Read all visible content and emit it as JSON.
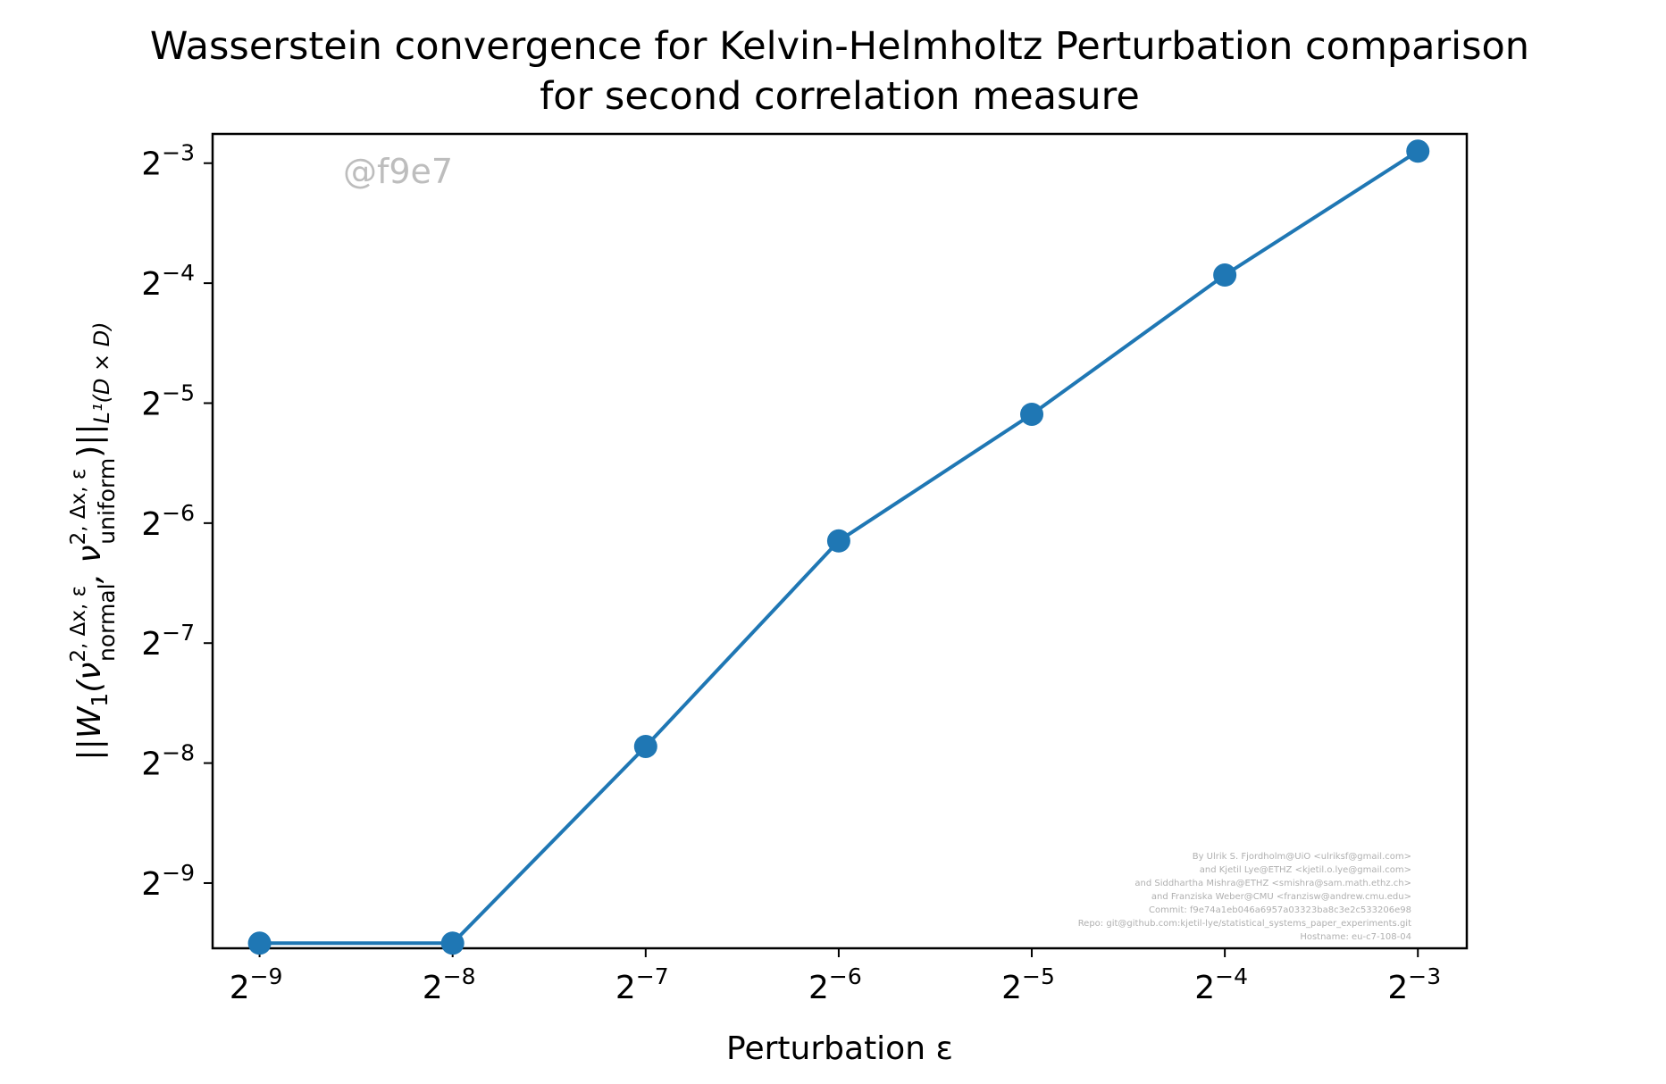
{
  "chart_data": {
    "type": "line",
    "title": [
      "Wasserstein convergence for Kelvin-Helmholtz Perturbation comparison",
      "for second correlation measure"
    ],
    "xlabel": "Perturbation ε",
    "ylabel": {
      "prefix": "||W",
      "w_sub": "1",
      "open": "(ν",
      "sup1": "2, Δx, ε",
      "sub1": "normal",
      "comma": ", ν",
      "sup2": "2, Δx, ε",
      "sub2": "uniform",
      "close": ")||",
      "norm_sub": "L¹(D × D)"
    },
    "x_scale": "log2",
    "y_scale": "log2",
    "xlim": [
      0.00165,
      0.149
    ],
    "ylim": [
      0.00134,
      0.148
    ],
    "x_ticks": [
      {
        "value": 0.001953125,
        "base": "2",
        "exp": "−9"
      },
      {
        "value": 0.00390625,
        "base": "2",
        "exp": "−8"
      },
      {
        "value": 0.0078125,
        "base": "2",
        "exp": "−7"
      },
      {
        "value": 0.015625,
        "base": "2",
        "exp": "−6"
      },
      {
        "value": 0.03125,
        "base": "2",
        "exp": "−5"
      },
      {
        "value": 0.0625,
        "base": "2",
        "exp": "−4"
      },
      {
        "value": 0.125,
        "base": "2",
        "exp": "−3"
      }
    ],
    "y_ticks": [
      {
        "value": 0.001953125,
        "base": "2",
        "exp": "−9"
      },
      {
        "value": 0.00390625,
        "base": "2",
        "exp": "−8"
      },
      {
        "value": 0.0078125,
        "base": "2",
        "exp": "−7"
      },
      {
        "value": 0.015625,
        "base": "2",
        "exp": "−6"
      },
      {
        "value": 0.03125,
        "base": "2",
        "exp": "−5"
      },
      {
        "value": 0.0625,
        "base": "2",
        "exp": "−4"
      },
      {
        "value": 0.125,
        "base": "2",
        "exp": "−3"
      }
    ],
    "series": [
      {
        "x": [
          0.001953125,
          0.00390625,
          0.0078125,
          0.015625,
          0.03125,
          0.0625,
          0.125
        ],
        "y": [
          0.00138,
          0.00138,
          0.0043,
          0.0141,
          0.0293,
          0.0655,
          0.134
        ],
        "color": "#1f77b4"
      }
    ],
    "grid": false,
    "legend": "none"
  },
  "watermark": "@f9e7",
  "credits": [
    "By Ulrik S. Fjordholm@UiO <ulriksf@gmail.com>",
    "and Kjetil Lye@ETHZ <kjetil.o.lye@gmail.com>",
    "and Siddhartha Mishra@ETHZ <smishra@sam.math.ethz.ch>",
    "and Franziska Weber@CMU <franzisw@andrew.cmu.edu>",
    "Commit: f9e74a1eb046a6957a03323ba8c3e2c533206e98",
    "Repo: git@github.com:kjetil-lye/statistical_systems_paper_experiments.git",
    "Hostname: eu-c7-108-04"
  ]
}
